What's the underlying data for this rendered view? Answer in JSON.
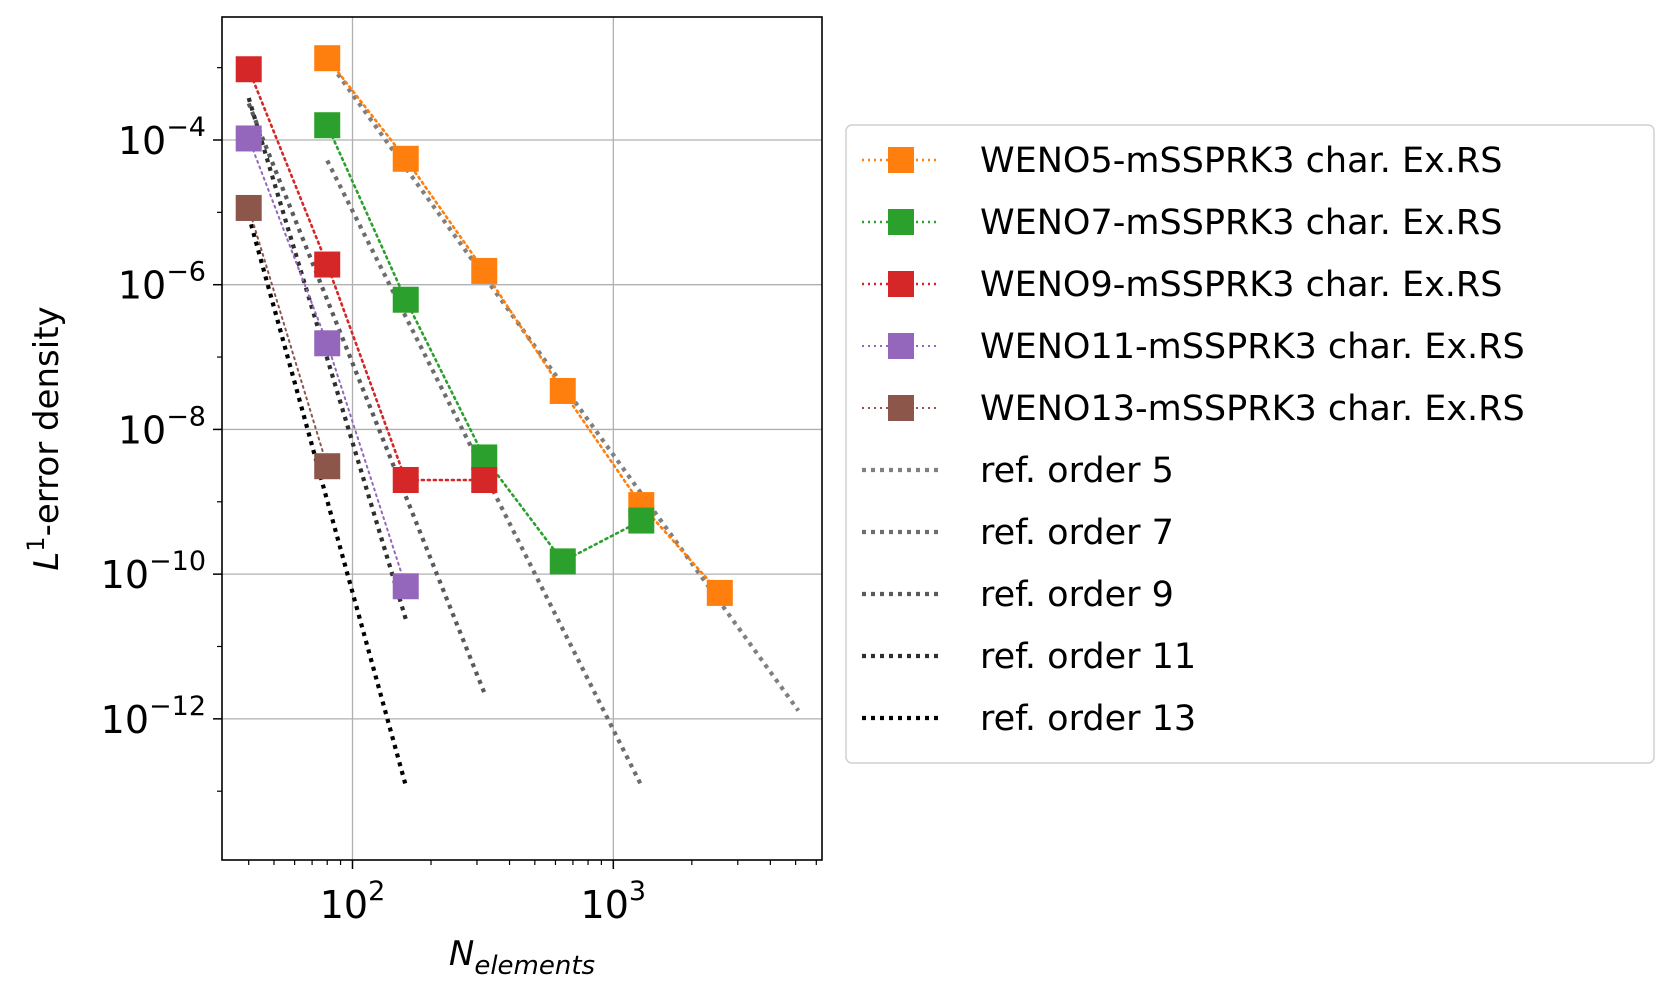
{
  "chart_data": {
    "type": "line",
    "title": "",
    "xlabel": {
      "base": "N",
      "sub": "elements"
    },
    "ylabel": {
      "base": "L",
      "sup": "1",
      "rest": "-error density"
    },
    "xscale": "log",
    "yscale": "log",
    "xlim": [
      31.6,
      6310
    ],
    "ylim": [
      1.12e-14,
      0.00501
    ],
    "grid": true,
    "legend_position": "outside-right",
    "x_ticks": [
      {
        "value": 100,
        "base": "10",
        "exp": "2"
      },
      {
        "value": 1000,
        "base": "10",
        "exp": "3"
      }
    ],
    "y_ticks": [
      {
        "value": 0.0001,
        "base": "10",
        "exp": "−4"
      },
      {
        "value": 1e-06,
        "base": "10",
        "exp": "−6"
      },
      {
        "value": 1e-08,
        "base": "10",
        "exp": "−8"
      },
      {
        "value": 1e-10,
        "base": "10",
        "exp": "−10"
      },
      {
        "value": 1e-12,
        "base": "10",
        "exp": "−12"
      }
    ],
    "series": [
      {
        "name": "WENO5-mSSPRK3 char. Ex.RS",
        "color": "#ff7f0e",
        "x": [
          80,
          160,
          320,
          640,
          1280,
          2560
        ],
        "y": [
          0.00135,
          5.5e-05,
          1.55e-06,
          3.4e-08,
          9e-10,
          5.5e-11
        ]
      },
      {
        "name": "WENO7-mSSPRK3 char. Ex.RS",
        "color": "#2ca02c",
        "x": [
          80,
          160,
          320,
          640,
          1280
        ],
        "y": [
          0.00016,
          6.2e-07,
          4.1e-09,
          1.5e-10,
          5.5e-10
        ]
      },
      {
        "name": "WENO9-mSSPRK3 char. Ex.RS",
        "color": "#d62728",
        "x": [
          40,
          80,
          160,
          320
        ],
        "y": [
          0.00095,
          1.9e-06,
          2e-09,
          2e-09
        ]
      },
      {
        "name": "WENO11-mSSPRK3 char. Ex.RS",
        "color": "#9467bd",
        "x": [
          40,
          80,
          160
        ],
        "y": [
          0.000105,
          1.55e-07,
          6.8e-11
        ]
      },
      {
        "name": "WENO13-mSSPRK3 char. Ex.RS",
        "color": "#8c564b",
        "x": [
          40,
          80
        ],
        "y": [
          1.15e-05,
          3.1e-09
        ]
      }
    ],
    "reference_lines": [
      {
        "name": "ref. order 5",
        "color": "#808080",
        "x": [
          80,
          5120
        ],
        "y": [
          0.0013,
          1.3e-12
        ]
      },
      {
        "name": "ref. order 7",
        "color": "#6e6e6e",
        "x": [
          80,
          1280
        ],
        "y": [
          5.2e-05,
          1.2e-13
        ]
      },
      {
        "name": "ref. order 9",
        "color": "#5a5a5a",
        "x": [
          40,
          320
        ],
        "y": [
          0.00032,
          2.3e-12
        ]
      },
      {
        "name": "ref. order 11",
        "color": "#2e2e2e",
        "x": [
          40,
          160
        ],
        "y": [
          0.00038,
          2.4e-11
        ]
      },
      {
        "name": "ref. order 13",
        "color": "#000000",
        "x": [
          40,
          160
        ],
        "y": [
          9e-06,
          1.2e-13
        ]
      }
    ]
  }
}
